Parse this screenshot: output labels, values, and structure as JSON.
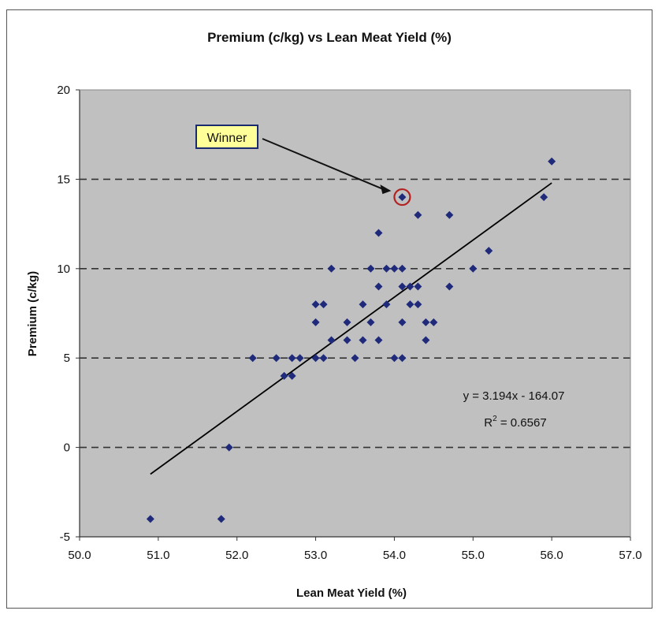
{
  "chart_data": {
    "type": "scatter",
    "title": "Premium (c/kg) vs Lean Meat Yield (%)",
    "xlabel": "Lean Meat Yield (%)",
    "ylabel": "Premium (c/kg)",
    "xlim": [
      50.0,
      57.0
    ],
    "ylim": [
      -5,
      20
    ],
    "x_ticks": [
      "50.0",
      "51.0",
      "52.0",
      "53.0",
      "54.0",
      "55.0",
      "56.0",
      "57.0"
    ],
    "y_ticks": [
      "-5",
      "0",
      "5",
      "10",
      "15",
      "20"
    ],
    "grid": "horizontal dashed",
    "colors": {
      "plot_bg": "#c0c0c0",
      "marker": "#1f2a7a",
      "trendline": "#000000",
      "callout_bg": "#ffff99",
      "highlight": "#b22222"
    },
    "series": [
      {
        "points": [
          [
            50.9,
            -4
          ],
          [
            51.8,
            -4
          ],
          [
            51.9,
            0
          ],
          [
            52.2,
            5
          ],
          [
            52.5,
            5
          ],
          [
            52.6,
            4
          ],
          [
            52.7,
            4
          ],
          [
            52.7,
            5
          ],
          [
            52.8,
            5
          ],
          [
            53.0,
            5
          ],
          [
            53.0,
            7
          ],
          [
            53.0,
            8
          ],
          [
            53.1,
            5
          ],
          [
            53.1,
            8
          ],
          [
            53.2,
            6
          ],
          [
            53.2,
            10
          ],
          [
            53.4,
            6
          ],
          [
            53.4,
            7
          ],
          [
            53.5,
            5
          ],
          [
            53.6,
            6
          ],
          [
            53.6,
            8
          ],
          [
            53.7,
            7
          ],
          [
            53.7,
            10
          ],
          [
            53.8,
            6
          ],
          [
            53.8,
            9
          ],
          [
            53.8,
            12
          ],
          [
            53.9,
            8
          ],
          [
            53.9,
            10
          ],
          [
            54.0,
            5
          ],
          [
            54.0,
            10
          ],
          [
            54.1,
            5
          ],
          [
            54.1,
            7
          ],
          [
            54.1,
            9
          ],
          [
            54.1,
            10
          ],
          [
            54.1,
            14
          ],
          [
            54.2,
            8
          ],
          [
            54.2,
            9
          ],
          [
            54.3,
            8
          ],
          [
            54.3,
            9
          ],
          [
            54.3,
            13
          ],
          [
            54.4,
            6
          ],
          [
            54.4,
            7
          ],
          [
            54.5,
            7
          ],
          [
            54.7,
            9
          ],
          [
            54.7,
            13
          ],
          [
            55.0,
            10
          ],
          [
            55.2,
            11
          ],
          [
            55.9,
            14
          ],
          [
            56.0,
            16
          ]
        ]
      }
    ],
    "trendline": {
      "slope": 3.194,
      "intercept": -164.07,
      "x_range": [
        50.9,
        56.0
      ]
    },
    "equation": "y = 3.194x - 164.07",
    "r_squared_prefix": "R",
    "r_squared_sup": "2",
    "r_squared_value": " = 0.6567",
    "annotation": {
      "label": "Winner",
      "point": [
        54.1,
        14
      ]
    }
  }
}
